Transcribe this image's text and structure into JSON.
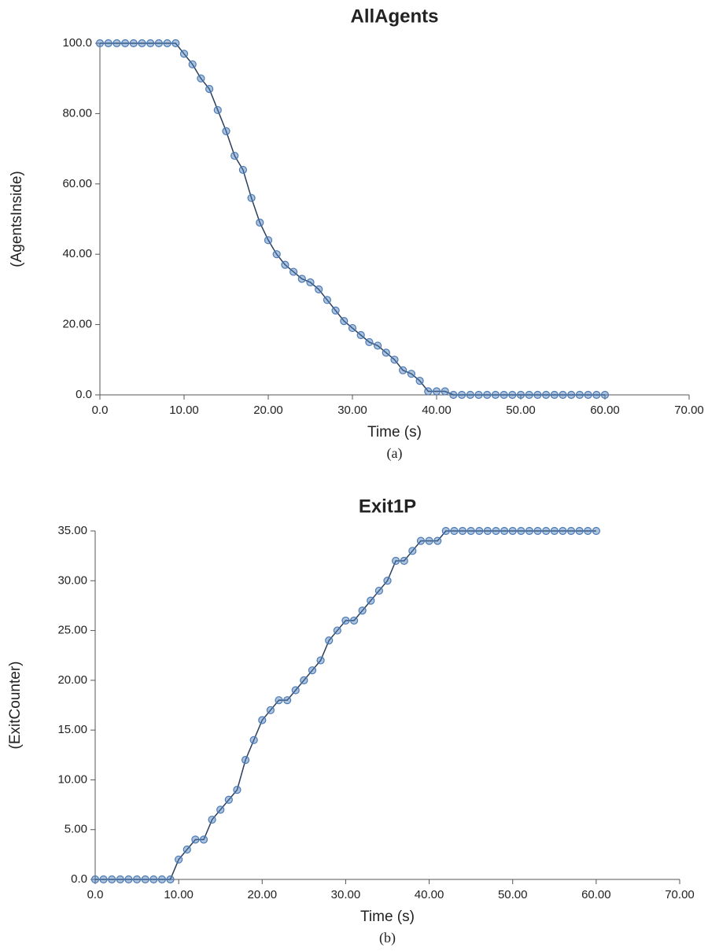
{
  "chart_data": [
    {
      "type": "line",
      "title": "AllAgents",
      "x_label": "Time (s)",
      "y_label": "(AgentsInside)",
      "caption": "(a)",
      "xlim": [
        0,
        70
      ],
      "ylim": [
        0,
        100
      ],
      "xticks": [
        {
          "value": 0,
          "label": "0.0"
        },
        {
          "value": 10,
          "label": "10.00"
        },
        {
          "value": 20,
          "label": "20.00"
        },
        {
          "value": 30,
          "label": "30.00"
        },
        {
          "value": 40,
          "label": "40.00"
        },
        {
          "value": 50,
          "label": "50.00"
        },
        {
          "value": 60,
          "label": "60.00"
        },
        {
          "value": 70,
          "label": "70.00"
        }
      ],
      "yticks": [
        {
          "value": 0,
          "label": "0.0"
        },
        {
          "value": 20,
          "label": "20.00"
        },
        {
          "value": 40,
          "label": "40.00"
        },
        {
          "value": 60,
          "label": "60.00"
        },
        {
          "value": 80,
          "label": "80.00"
        },
        {
          "value": 100,
          "label": "100.0"
        }
      ],
      "marker_color": "#4a7ab5",
      "line_color": "#2b3f5c",
      "x": [
        0,
        1,
        2,
        3,
        4,
        5,
        6,
        7,
        8,
        9,
        10,
        11,
        12,
        13,
        14,
        15,
        16,
        17,
        18,
        19,
        20,
        21,
        22,
        23,
        24,
        25,
        26,
        27,
        28,
        29,
        30,
        31,
        32,
        33,
        34,
        35,
        36,
        37,
        38,
        39,
        40,
        41,
        42,
        43,
        44,
        45,
        46,
        47,
        48,
        49,
        50,
        51,
        52,
        53,
        54,
        55,
        56,
        57,
        58,
        59,
        60
      ],
      "values": [
        100,
        100,
        100,
        100,
        100,
        100,
        100,
        100,
        100,
        100,
        97,
        94,
        90,
        87,
        81,
        75,
        68,
        64,
        56,
        49,
        44,
        40,
        37,
        35,
        33,
        32,
        30,
        27,
        24,
        21,
        19,
        17,
        15,
        14,
        12,
        10,
        7,
        6,
        4,
        1,
        1,
        1,
        0,
        0,
        0,
        0,
        0,
        0,
        0,
        0,
        0,
        0,
        0,
        0,
        0,
        0,
        0,
        0,
        0,
        0,
        0
      ]
    },
    {
      "type": "line",
      "title": "Exit1P",
      "x_label": "Time (s)",
      "y_label": "(ExitCounter)",
      "caption": "(b)",
      "xlim": [
        0,
        70
      ],
      "ylim": [
        0,
        35
      ],
      "xticks": [
        {
          "value": 0,
          "label": "0.0"
        },
        {
          "value": 10,
          "label": "10.00"
        },
        {
          "value": 20,
          "label": "20.00"
        },
        {
          "value": 30,
          "label": "30.00"
        },
        {
          "value": 40,
          "label": "40.00"
        },
        {
          "value": 50,
          "label": "50.00"
        },
        {
          "value": 60,
          "label": "60.00"
        },
        {
          "value": 70,
          "label": "70.00"
        }
      ],
      "yticks": [
        {
          "value": 0,
          "label": "0.0"
        },
        {
          "value": 5,
          "label": "5.00"
        },
        {
          "value": 10,
          "label": "10.00"
        },
        {
          "value": 15,
          "label": "15.00"
        },
        {
          "value": 20,
          "label": "20.00"
        },
        {
          "value": 25,
          "label": "25.00"
        },
        {
          "value": 30,
          "label": "30.00"
        },
        {
          "value": 35,
          "label": "35.00"
        }
      ],
      "marker_color": "#4a7ab5",
      "line_color": "#2b3f5c",
      "x": [
        0,
        1,
        2,
        3,
        4,
        5,
        6,
        7,
        8,
        9,
        10,
        11,
        12,
        13,
        14,
        15,
        16,
        17,
        18,
        19,
        20,
        21,
        22,
        23,
        24,
        25,
        26,
        27,
        28,
        29,
        30,
        31,
        32,
        33,
        34,
        35,
        36,
        37,
        38,
        39,
        40,
        41,
        42,
        43,
        44,
        45,
        46,
        47,
        48,
        49,
        50,
        51,
        52,
        53,
        54,
        55,
        56,
        57,
        58,
        59,
        60
      ],
      "values": [
        0,
        0,
        0,
        0,
        0,
        0,
        0,
        0,
        0,
        0,
        2,
        3,
        4,
        4,
        6,
        7,
        8,
        9,
        12,
        14,
        16,
        17,
        18,
        18,
        19,
        20,
        21,
        22,
        24,
        25,
        26,
        26,
        27,
        28,
        29,
        30,
        32,
        32,
        33,
        34,
        34,
        34,
        35,
        35,
        35,
        35,
        35,
        35,
        35,
        35,
        35,
        35,
        35,
        35,
        35,
        35,
        35,
        35,
        35,
        35,
        35
      ]
    }
  ]
}
